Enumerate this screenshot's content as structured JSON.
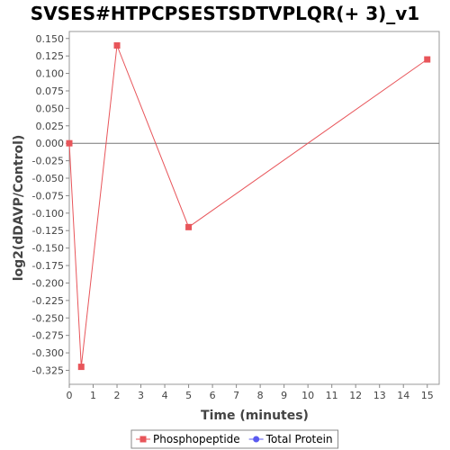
{
  "chart_data": {
    "type": "line",
    "title": "SVSES#HTPCPSESTSDTVPLQR(+ 3)_v1",
    "xlabel": "Time (minutes)",
    "ylabel": "log2(dDAVP/Control)",
    "xlim": [
      0,
      15.5
    ],
    "ylim": [
      -0.345,
      0.16
    ],
    "x_ticks": [
      0,
      1,
      2,
      3,
      4,
      5,
      6,
      7,
      8,
      9,
      10,
      11,
      12,
      13,
      14,
      15
    ],
    "x_tick_labels": [
      "0",
      "1",
      "2",
      "3",
      "4",
      "5",
      "6",
      "7",
      "8",
      "9",
      "10",
      "11",
      "12",
      "13",
      "14",
      "15"
    ],
    "y_ticks": [
      0.15,
      0.125,
      0.1,
      0.075,
      0.05,
      0.025,
      0.0,
      -0.025,
      -0.05,
      -0.075,
      -0.1,
      -0.125,
      -0.15,
      -0.175,
      -0.2,
      -0.225,
      -0.25,
      -0.275,
      -0.3,
      -0.325
    ],
    "y_tick_labels": [
      "0.150",
      "0.125",
      "0.100",
      "0.075",
      "0.050",
      "0.025",
      "0.000",
      "-0.025",
      "-0.050",
      "-0.075",
      "-0.100",
      "-0.125",
      "-0.150",
      "-0.175",
      "-0.200",
      "-0.225",
      "-0.250",
      "-0.275",
      "-0.300",
      "-0.325"
    ],
    "zero_line": true,
    "grid": false,
    "legend_position": "bottom",
    "series": [
      {
        "name": "Phosphopeptide",
        "color": "#e8555a",
        "marker": "square",
        "x": [
          0,
          0.5,
          2,
          5,
          15
        ],
        "y": [
          0.0,
          -0.32,
          0.14,
          -0.12,
          0.12
        ]
      },
      {
        "name": "Total Protein",
        "color": "#5a5af0",
        "marker": "circle",
        "x": [],
        "y": []
      }
    ]
  }
}
